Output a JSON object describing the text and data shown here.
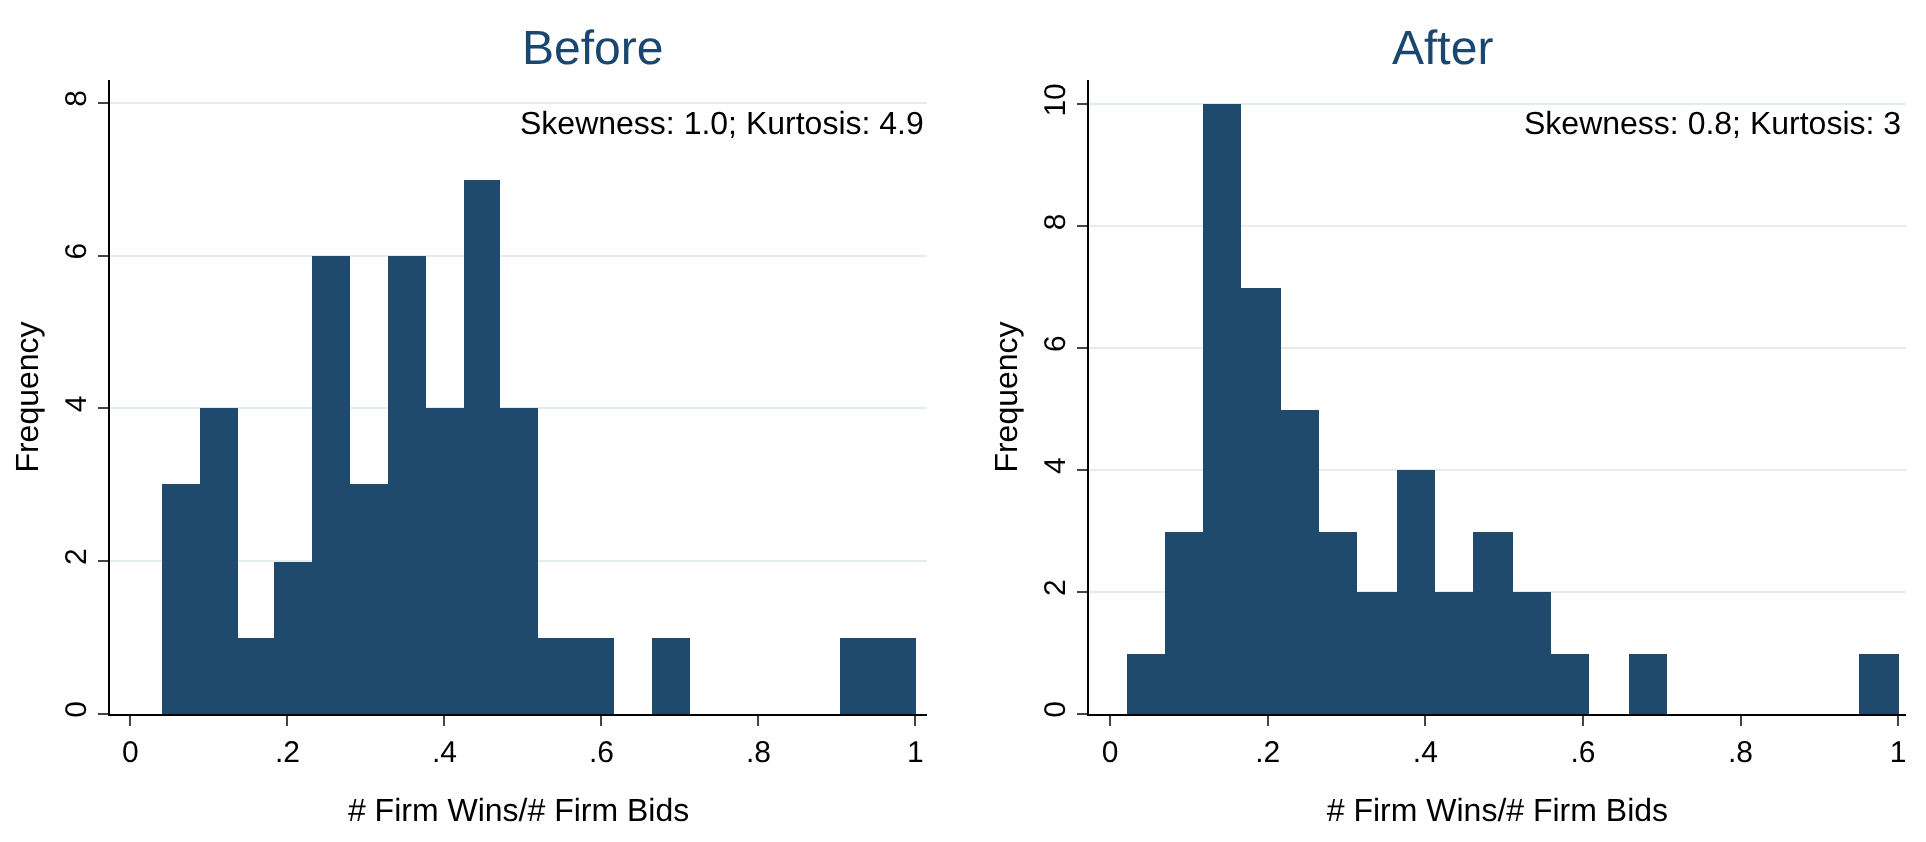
{
  "chart_data": [
    {
      "type": "histogram",
      "title": "Before",
      "xlabel": "# Firm Wins/# Firm Bids",
      "ylabel": "Frequency",
      "bins": [
        0.04,
        0.088,
        0.136,
        0.184,
        0.232,
        0.28,
        0.328,
        0.376,
        0.424,
        0.472,
        0.52,
        0.568,
        0.616,
        0.664,
        0.712,
        0.76,
        0.808,
        0.856,
        0.904,
        0.952,
        1.0
      ],
      "values": [
        3,
        4,
        1,
        2,
        6,
        3,
        6,
        4,
        7,
        4,
        1,
        1,
        0,
        1,
        0,
        0,
        0,
        0,
        1,
        1
      ],
      "color": "#1f4a6e",
      "xlim": [
        -0.026,
        1.015
      ],
      "ylim": [
        0,
        8.3
      ],
      "xticks": [
        {
          "value": 0,
          "label": "0"
        },
        {
          "value": 0.2,
          "label": ".2"
        },
        {
          "value": 0.4,
          "label": ".4"
        },
        {
          "value": 0.6,
          "label": ".6"
        },
        {
          "value": 0.8,
          "label": ".8"
        },
        {
          "value": 1,
          "label": "1"
        }
      ],
      "yticks": [
        0,
        2,
        4,
        6,
        8
      ],
      "grid": "y",
      "annotations": [
        "Skewness: 1.0; Kurtosis: 4.9"
      ]
    },
    {
      "type": "histogram",
      "title": "After",
      "xlabel": "# Firm Wins/# Firm Bids",
      "ylabel": "Frequency",
      "bins": [
        0.02,
        0.069,
        0.118,
        0.167,
        0.216,
        0.265,
        0.314,
        0.363,
        0.412,
        0.461,
        0.51,
        0.559,
        0.608,
        0.657,
        0.706,
        0.755,
        0.804,
        0.853,
        0.902,
        0.951,
        1.0
      ],
      "values": [
        1,
        3,
        10,
        7,
        5,
        3,
        2,
        4,
        2,
        3,
        2,
        1,
        0,
        1,
        0,
        0,
        0,
        0,
        0,
        1
      ],
      "color": "#1f4a6e",
      "xlim": [
        -0.027,
        1.01
      ],
      "ylim": [
        0,
        10.4
      ],
      "xticks": [
        {
          "value": 0,
          "label": "0"
        },
        {
          "value": 0.2,
          "label": ".2"
        },
        {
          "value": 0.4,
          "label": ".4"
        },
        {
          "value": 0.6,
          "label": ".6"
        },
        {
          "value": 0.8,
          "label": ".8"
        },
        {
          "value": 1,
          "label": "1"
        }
      ],
      "yticks": [
        0,
        2,
        4,
        6,
        8,
        10
      ],
      "grid": "y",
      "annotations": [
        "Skewness: 0.8; Kurtosis: 3"
      ]
    }
  ]
}
